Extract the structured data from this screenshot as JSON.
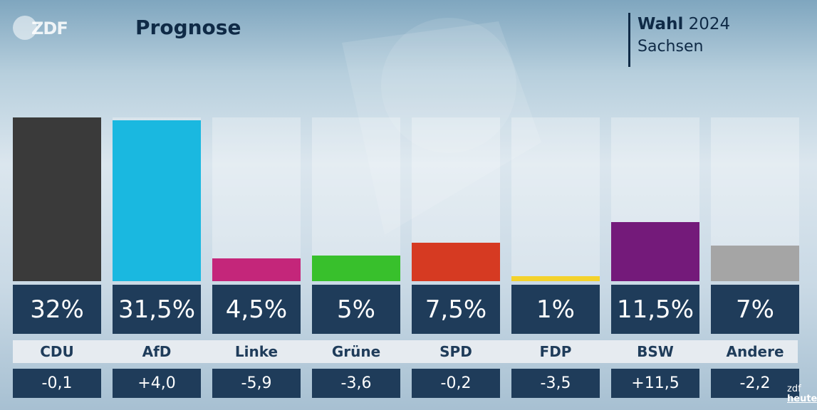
{
  "header": {
    "logo_text": "ZDF",
    "title": "Prognose",
    "election_bold": "Wahl",
    "election_year": "2024",
    "election_region": "Sachsen"
  },
  "corner_logo": {
    "line1": "zdf",
    "line2": "heute"
  },
  "chart_data": {
    "type": "bar",
    "title": "Prognose",
    "categories": [
      "CDU",
      "AfD",
      "Linke",
      "Grüne",
      "SPD",
      "FDP",
      "BSW",
      "Andere"
    ],
    "values": [
      32,
      31.5,
      4.5,
      5,
      7.5,
      1,
      11.5,
      7
    ],
    "value_labels": [
      "32%",
      "31,5%",
      "4,5%",
      "5%",
      "7,5%",
      "1%",
      "11,5%",
      "7%"
    ],
    "changes": [
      "-0,1",
      "+4,0",
      "-5,9",
      "-3,6",
      "-0,2",
      "-3,5",
      "+11,5",
      "-2,2"
    ],
    "colors": [
      "#3a3a3a",
      "#1ab8e0",
      "#c4267a",
      "#38c02c",
      "#d63a22",
      "#f4d22c",
      "#741a7a",
      "#a5a5a5"
    ],
    "ylim": [
      0,
      32
    ],
    "grid": false,
    "legend": "none"
  }
}
